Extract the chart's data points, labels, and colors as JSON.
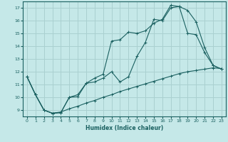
{
  "xlabel": "Humidex (Indice chaleur)",
  "bg_color": "#c5e8e8",
  "grid_color": "#aad0d0",
  "line_color": "#1a6060",
  "xlim": [
    -0.5,
    23.5
  ],
  "ylim": [
    8.5,
    17.5
  ],
  "xticks": [
    0,
    1,
    2,
    3,
    4,
    5,
    6,
    7,
    8,
    9,
    10,
    11,
    12,
    13,
    14,
    15,
    16,
    17,
    18,
    19,
    20,
    21,
    22,
    23
  ],
  "yticks": [
    9,
    10,
    11,
    12,
    13,
    14,
    15,
    16,
    17
  ],
  "line1_x": [
    0,
    1,
    2,
    3,
    4,
    5,
    6,
    7,
    8,
    9,
    10,
    11,
    12,
    13,
    14,
    15,
    16,
    17,
    18,
    19,
    20,
    21,
    22,
    23
  ],
  "line1_y": [
    11.6,
    10.2,
    9.0,
    8.75,
    8.8,
    10.0,
    10.05,
    11.1,
    11.2,
    11.5,
    12.0,
    11.2,
    11.6,
    13.2,
    14.3,
    16.1,
    16.0,
    17.0,
    17.1,
    16.8,
    15.9,
    13.9,
    12.5,
    12.2
  ],
  "line2_x": [
    0,
    1,
    2,
    3,
    4,
    5,
    6,
    7,
    8,
    9,
    10,
    11,
    12,
    13,
    14,
    15,
    16,
    17,
    18,
    19,
    20,
    21,
    22,
    23
  ],
  "line2_y": [
    11.6,
    10.2,
    9.0,
    8.75,
    8.8,
    10.0,
    10.2,
    11.1,
    11.5,
    11.8,
    14.4,
    14.5,
    15.1,
    15.0,
    15.2,
    15.8,
    16.1,
    17.2,
    17.1,
    15.0,
    14.9,
    13.5,
    12.5,
    12.2
  ],
  "line3_x": [
    0,
    1,
    2,
    3,
    4,
    5,
    6,
    7,
    8,
    9,
    10,
    11,
    12,
    13,
    14,
    15,
    16,
    17,
    18,
    19,
    20,
    21,
    22,
    23
  ],
  "line3_y": [
    11.6,
    10.2,
    9.0,
    8.75,
    8.85,
    9.1,
    9.3,
    9.55,
    9.75,
    10.0,
    10.2,
    10.45,
    10.65,
    10.85,
    11.05,
    11.25,
    11.45,
    11.65,
    11.85,
    12.0,
    12.1,
    12.2,
    12.3,
    12.25
  ]
}
